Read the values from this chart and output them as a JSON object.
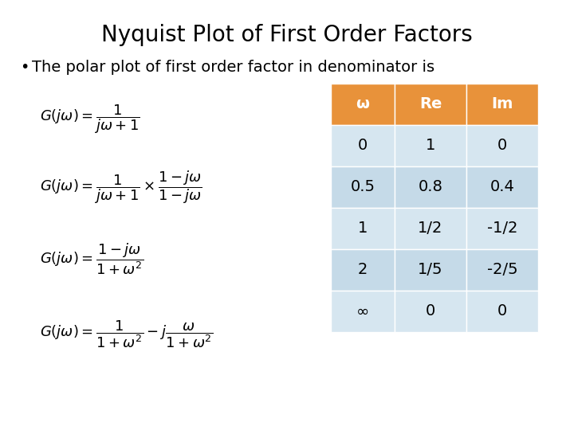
{
  "title": "Nyquist Plot of First Order Factors",
  "bullet_text": "The polar plot of first order factor in denominator is",
  "table_header": [
    "ω",
    "Re",
    "Im"
  ],
  "table_data": [
    [
      "0",
      "1",
      "0"
    ],
    [
      "0.5",
      "0.8",
      "0.4"
    ],
    [
      "1",
      "1/2",
      "-1/2"
    ],
    [
      "2",
      "1/5",
      "-2/5"
    ],
    [
      "∞",
      "0",
      "0"
    ]
  ],
  "header_color": "#E8923A",
  "row_color_even": "#C5DAE8",
  "row_color_odd": "#D6E6F0",
  "background_color": "#FFFFFF",
  "title_fontsize": 20,
  "bullet_fontsize": 14,
  "eq_fontsize": 13,
  "table_fontsize": 13
}
